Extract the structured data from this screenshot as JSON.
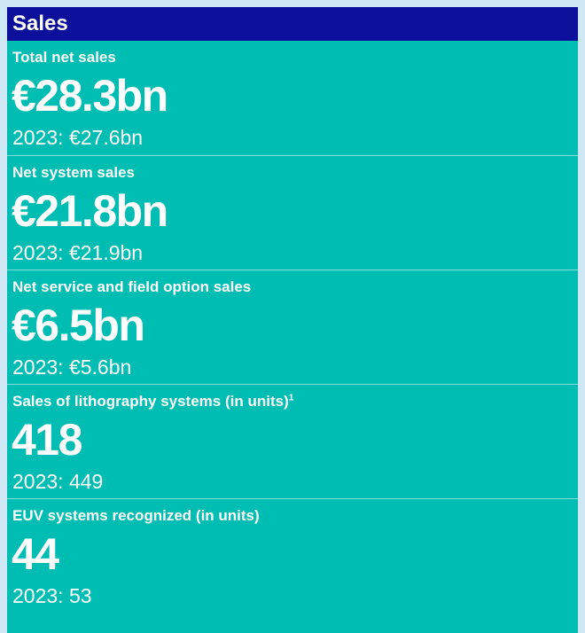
{
  "header": {
    "title": "Sales"
  },
  "metrics": [
    {
      "label": "Total net sales",
      "footnote": "",
      "value": "€28.3bn",
      "prior": "2023: €27.6bn"
    },
    {
      "label": "Net system sales",
      "footnote": "",
      "value": "€21.8bn",
      "prior": "2023: €21.9bn"
    },
    {
      "label": "Net service and field option sales",
      "footnote": "",
      "value": "€6.5bn",
      "prior": "2023: €5.6bn"
    },
    {
      "label": "Sales of lithography systems (in units)",
      "footnote": "1",
      "value": "418",
      "prior": "2023: 449"
    },
    {
      "label": "EUV systems recognized (in units)",
      "footnote": "",
      "value": "44",
      "prior": "2023: 53"
    }
  ],
  "colors": {
    "header_bg": "#0c0f9a",
    "panel_bg": "#00bdb3",
    "page_bg": "#cfe8f6",
    "text": "#ffffff"
  }
}
